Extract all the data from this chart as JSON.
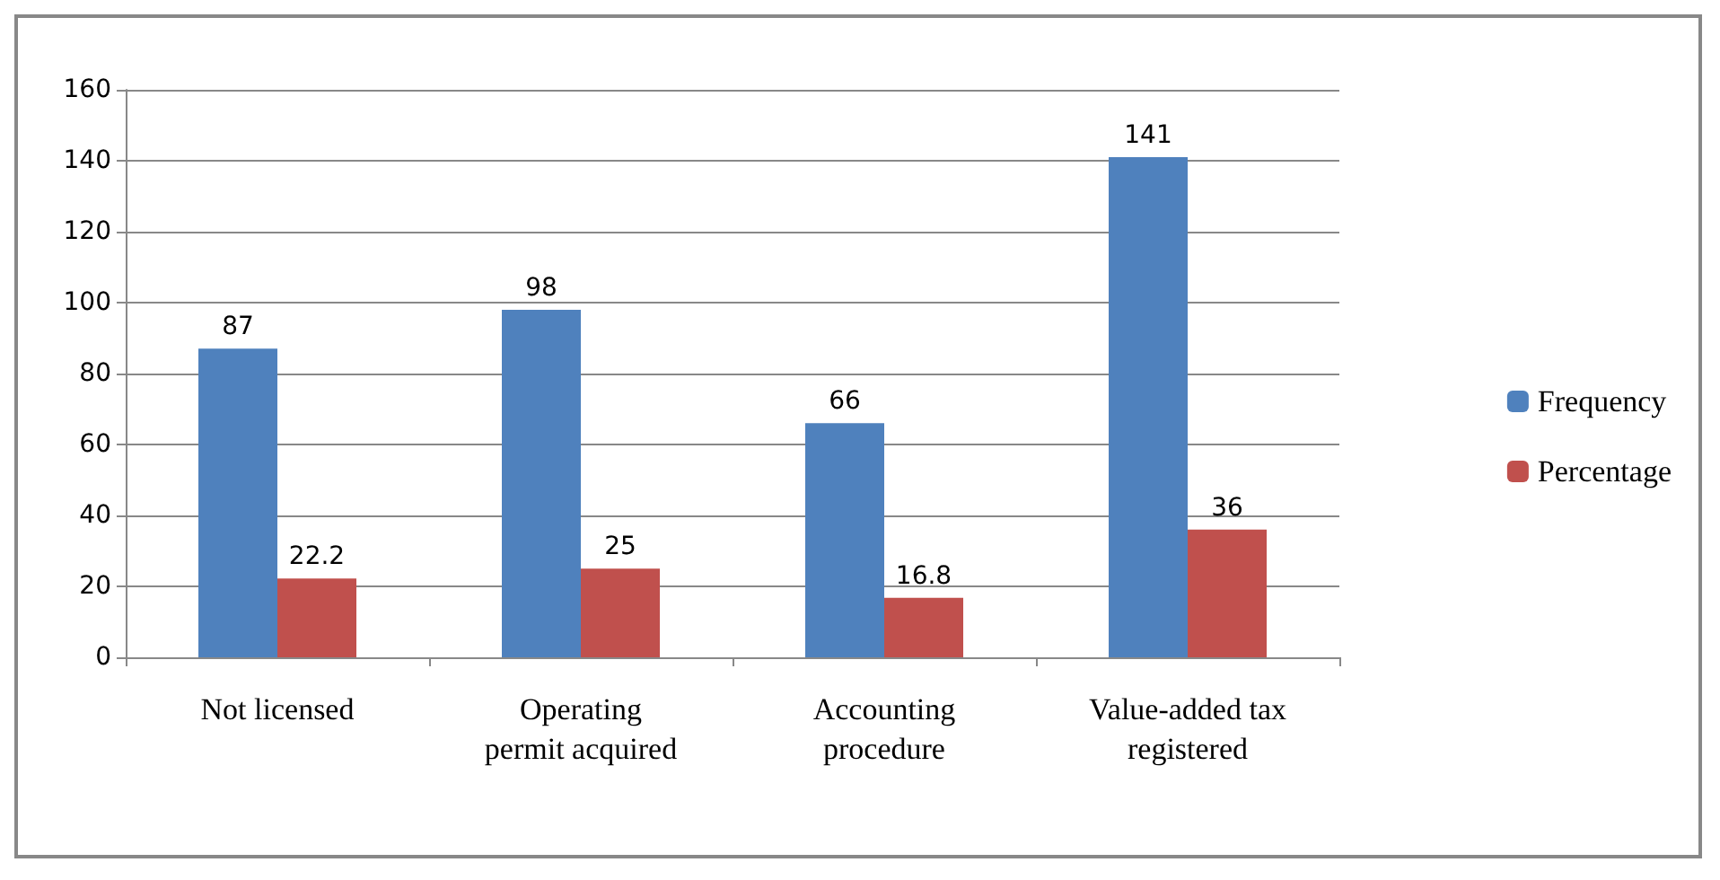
{
  "chart_data": {
    "type": "bar",
    "categories": [
      "Not licensed",
      "Operating\npermit acquired",
      "Accounting\nprocedure",
      "Value-added tax\nregistered"
    ],
    "series": [
      {
        "name": "Frequency",
        "color": "#4f81bd",
        "values": [
          87,
          98,
          66,
          141
        ]
      },
      {
        "name": "Percentage",
        "color": "#c0504d",
        "values": [
          22.2,
          25,
          16.8,
          36
        ]
      }
    ],
    "ylim": [
      0,
      160
    ],
    "yticks": [
      0,
      20,
      40,
      60,
      80,
      100,
      120,
      140,
      160
    ],
    "grid": "y",
    "legend": "right",
    "data_labels": true
  }
}
